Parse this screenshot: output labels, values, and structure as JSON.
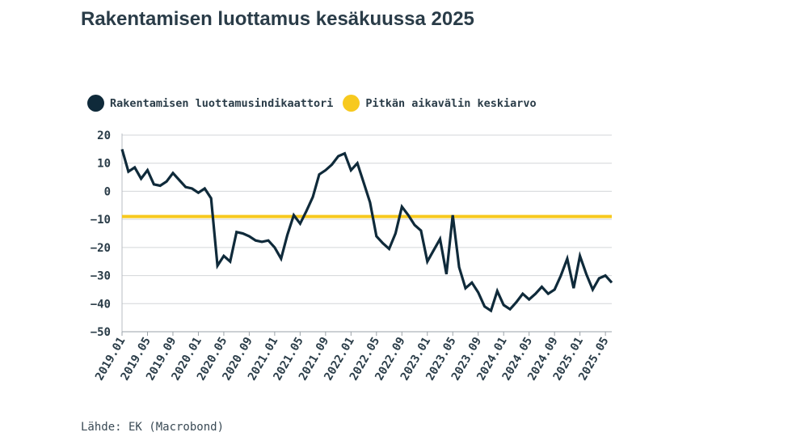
{
  "title": "Rakentamisen luottamus kesäkuussa 2025",
  "legend": [
    {
      "label": "Rakentamisen luottamusindikaattori",
      "color": "#0f2a3a"
    },
    {
      "label": "Pitkän aikavälin keskiarvo",
      "color": "#f7c91e"
    }
  ],
  "source": "Lähde: EK (Macrobond)",
  "chart_data": {
    "type": "line",
    "ylim": [
      -50,
      20
    ],
    "y_ticks": [
      20,
      10,
      0,
      -10,
      -20,
      -30,
      -40,
      -50
    ],
    "x_start": "2019.01",
    "x_tick_labels": [
      "2019.01",
      "2019.05",
      "2019.09",
      "2020.01",
      "2020.05",
      "2020.09",
      "2021.01",
      "2021.05",
      "2021.09",
      "2022.01",
      "2022.05",
      "2022.09",
      "2023.01",
      "2023.05",
      "2023.09",
      "2024.01",
      "2024.05",
      "2024.09",
      "2025.01",
      "2025.05"
    ],
    "grid": true,
    "series": [
      {
        "name": "Rakentamisen luottamusindikaattori",
        "color": "#0f2a3a",
        "values": [
          15,
          7,
          8.5,
          4.5,
          7.5,
          2.5,
          2,
          3.5,
          6.5,
          4,
          1.5,
          1,
          -0.5,
          1,
          -2.5,
          -26.5,
          -23,
          -25,
          -14.5,
          -15,
          -16,
          -17.5,
          -18,
          -17.5,
          -20,
          -24,
          -15.5,
          -8.5,
          -11.5,
          -7,
          -2,
          6,
          7.5,
          9.5,
          12.5,
          13.5,
          7.5,
          10,
          3,
          -4,
          -16,
          -18.5,
          -20.5,
          -15,
          -5.5,
          -8.5,
          -12,
          -14,
          -25,
          -21,
          -17,
          -29.5,
          -8.5,
          -27,
          -34.5,
          -32.5,
          -36,
          -41,
          -42.5,
          -35.5,
          -40.5,
          -42,
          -39.5,
          -36.5,
          -38.5,
          -36.5,
          -34,
          -36.5,
          -35,
          -30,
          -24,
          -34.5,
          -23,
          -29.5,
          -35,
          -31,
          -30,
          -32.5
        ]
      },
      {
        "name": "Pitkän aikavälin keskiarvo",
        "color": "#f7c91e",
        "constant": -9
      }
    ]
  }
}
